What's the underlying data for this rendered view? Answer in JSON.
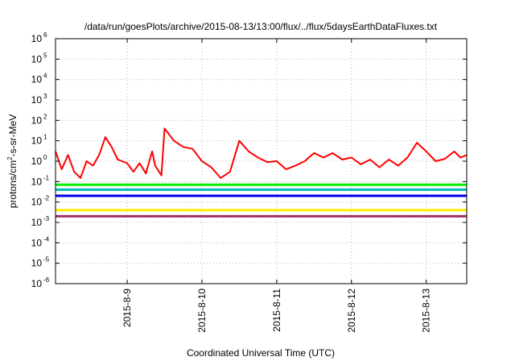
{
  "chart_data": {
    "type": "line",
    "title": "/data/run/goesPlots/archive/2015-08-13/13:00/flux/../flux/5daysEarthDataFluxes.txt",
    "xlabel": "Coordinated Universal Time (UTC)",
    "ylabel": "protons/cm²-s-sr-MeV",
    "yscale": "log",
    "ylim": [
      1e-06,
      1000000.0
    ],
    "xlim": [
      "2015-08-08 01:00",
      "2015-08-13 13:00"
    ],
    "grid": true,
    "legend": "none",
    "x_ticks": [
      {
        "label": "2015-8-9",
        "value": "2015-08-09"
      },
      {
        "label": "2015-8-10",
        "value": "2015-08-10"
      },
      {
        "label": "2015-8-11",
        "value": "2015-08-11"
      },
      {
        "label": "2015-8-12",
        "value": "2015-08-12"
      },
      {
        "label": "2015-8-13",
        "value": "2015-08-13"
      }
    ],
    "y_ticks": [
      {
        "base": "10",
        "exp": "6",
        "value": 1000000.0
      },
      {
        "base": "10",
        "exp": "5",
        "value": 100000.0
      },
      {
        "base": "10",
        "exp": "4",
        "value": 10000.0
      },
      {
        "base": "10",
        "exp": "3",
        "value": 1000.0
      },
      {
        "base": "10",
        "exp": "2",
        "value": 100.0
      },
      {
        "base": "10",
        "exp": "1",
        "value": 10.0
      },
      {
        "base": "10",
        "exp": "0",
        "value": 1
      },
      {
        "base": "10",
        "exp": "-1",
        "value": 0.1
      },
      {
        "base": "10",
        "exp": "-2",
        "value": 0.01
      },
      {
        "base": "10",
        "exp": "-3",
        "value": 0.001
      },
      {
        "base": "10",
        "exp": "-4",
        "value": 0.0001
      },
      {
        "base": "10",
        "exp": "-5",
        "value": 1e-05
      },
      {
        "base": "10",
        "exp": "-6",
        "value": 1e-06
      }
    ],
    "series": [
      {
        "color": "#ff0000",
        "x": [
          "2015-08-08 01:00",
          "2015-08-08 03:00",
          "2015-08-08 05:00",
          "2015-08-08 07:00",
          "2015-08-08 09:00",
          "2015-08-08 11:00",
          "2015-08-08 13:00",
          "2015-08-08 15:00",
          "2015-08-08 17:00",
          "2015-08-08 19:00",
          "2015-08-08 21:00",
          "2015-08-09 00:00",
          "2015-08-09 02:00",
          "2015-08-09 04:00",
          "2015-08-09 06:00",
          "2015-08-09 08:00",
          "2015-08-09 09:00",
          "2015-08-09 11:00",
          "2015-08-09 12:00",
          "2015-08-09 15:00",
          "2015-08-09 18:00",
          "2015-08-09 21:00",
          "2015-08-10 00:00",
          "2015-08-10 03:00",
          "2015-08-10 06:00",
          "2015-08-10 09:00",
          "2015-08-10 12:00",
          "2015-08-10 15:00",
          "2015-08-10 18:00",
          "2015-08-10 21:00",
          "2015-08-11 00:00",
          "2015-08-11 03:00",
          "2015-08-11 06:00",
          "2015-08-11 09:00",
          "2015-08-11 12:00",
          "2015-08-11 15:00",
          "2015-08-11 18:00",
          "2015-08-11 21:00",
          "2015-08-12 00:00",
          "2015-08-12 03:00",
          "2015-08-12 06:00",
          "2015-08-12 09:00",
          "2015-08-12 12:00",
          "2015-08-12 15:00",
          "2015-08-12 18:00",
          "2015-08-12 21:00",
          "2015-08-13 00:00",
          "2015-08-13 03:00",
          "2015-08-13 06:00",
          "2015-08-13 09:00",
          "2015-08-13 11:00",
          "2015-08-13 13:00"
        ],
        "y": [
          3,
          0.4,
          2,
          0.3,
          0.15,
          1,
          0.6,
          2,
          15,
          5,
          1.2,
          0.8,
          0.3,
          0.8,
          0.25,
          3,
          0.6,
          0.2,
          40,
          10,
          5,
          4,
          1,
          0.5,
          0.15,
          0.3,
          10,
          3,
          1.5,
          0.9,
          1,
          0.4,
          0.6,
          1,
          2.5,
          1.5,
          2.5,
          1.2,
          1.5,
          0.7,
          1.2,
          0.5,
          1.2,
          0.6,
          1.5,
          8,
          3,
          1,
          1.3,
          3,
          1.5,
          2
        ]
      },
      {
        "color": "#00ee00",
        "x": [
          "2015-08-08 01:00",
          "2015-08-13 13:00"
        ],
        "y": [
          0.07,
          0.07
        ]
      },
      {
        "color": "#00bbbb",
        "x": [
          "2015-08-08 01:00",
          "2015-08-13 13:00"
        ],
        "y": [
          0.04,
          0.04
        ]
      },
      {
        "color": "#0000ee",
        "x": [
          "2015-08-08 01:00",
          "2015-08-13 13:00"
        ],
        "y": [
          0.02,
          0.02
        ]
      },
      {
        "color": "#ffee00",
        "x": [
          "2015-08-08 01:00",
          "2015-08-13 13:00"
        ],
        "y": [
          0.004,
          0.004
        ]
      },
      {
        "color": "#993366",
        "x": [
          "2015-08-08 01:00",
          "2015-08-13 13:00"
        ],
        "y": [
          0.002,
          0.002
        ]
      }
    ]
  }
}
